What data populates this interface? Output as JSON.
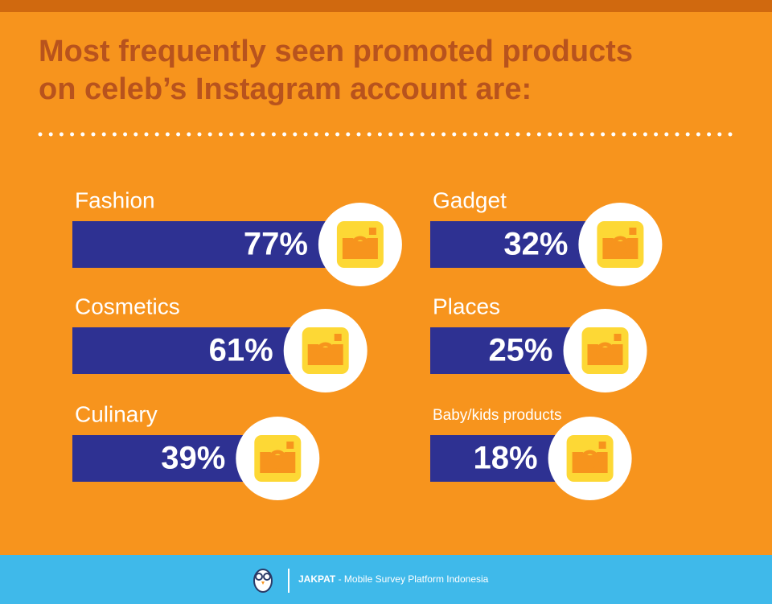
{
  "chart_data": {
    "type": "bar",
    "title_lines": [
      "Most frequently seen promoted products",
      "on celeb’s Instagram account are:"
    ],
    "categories": [
      "Fashion",
      "Gadget",
      "Cosmetics",
      "Places",
      "Culinary",
      "Baby/kids products"
    ],
    "values": [
      77,
      32,
      61,
      25,
      39,
      18
    ],
    "value_labels": [
      "77%",
      "32%",
      "61%",
      "25%",
      "39%",
      "18%"
    ],
    "color": "#2e3192"
  },
  "footer": {
    "brand": "JAKPAT",
    "text": "- Mobile Survey Platform Indonesia"
  }
}
